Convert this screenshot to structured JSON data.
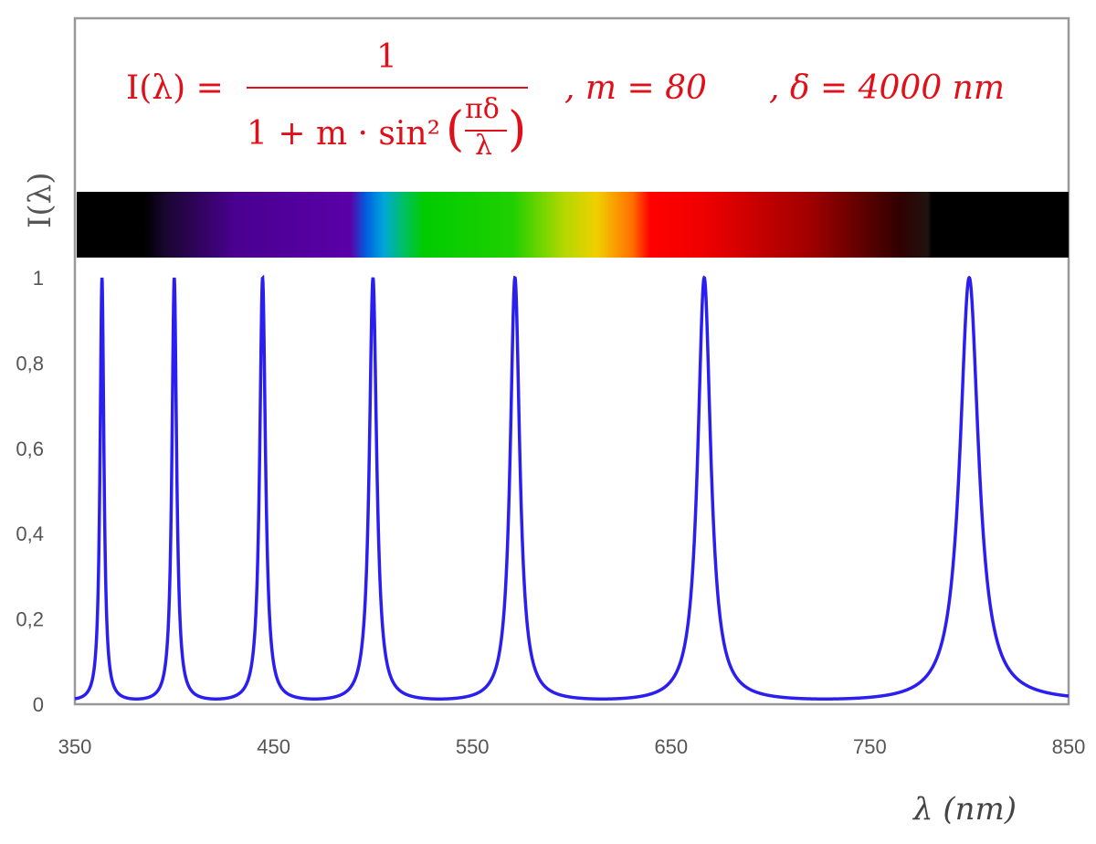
{
  "chart_data": {
    "type": "line",
    "title": {
      "lhs": "I(λ) =",
      "numerator": "1",
      "denominator_left": "1 + m · sin²",
      "frac_top": "πδ",
      "frac_bottom": "λ",
      "param_m": ",   m = 80",
      "param_delta": ",  δ = 4000 nm"
    },
    "function": "1/(1+m*sin^2(pi*delta/lambda))",
    "m": 80,
    "delta_nm": 4000,
    "xlabel": "λ  (nm)",
    "ylabel": "I(λ)",
    "xlim": [
      350,
      850
    ],
    "ylim": [
      0,
      1
    ],
    "xticks": [
      350,
      450,
      550,
      650,
      750,
      850
    ],
    "xtick_labels": [
      "350",
      "450",
      "550",
      "650",
      "750",
      "850"
    ],
    "yticks": [
      0,
      0.2,
      0.4,
      0.6,
      0.8,
      1
    ],
    "ytick_labels": [
      "0",
      "0,2",
      "0,4",
      "0,6",
      "0,8",
      "1"
    ],
    "peaks_nm": [
      363.6,
      400,
      444.4,
      500,
      571.4,
      666.7,
      800
    ],
    "grid": false,
    "line_color": "#2a1ef0",
    "spectrum_band": [
      {
        "nm": 350,
        "color": "#000000"
      },
      {
        "nm": 384,
        "color": "#000000"
      },
      {
        "nm": 395,
        "color": "#1a0630"
      },
      {
        "nm": 430,
        "color": "#4a0090"
      },
      {
        "nm": 488,
        "color": "#5a00a8"
      },
      {
        "nm": 496,
        "color": "#0060e0"
      },
      {
        "nm": 505,
        "color": "#00a8d8"
      },
      {
        "nm": 515,
        "color": "#00c060"
      },
      {
        "nm": 525,
        "color": "#00cc00"
      },
      {
        "nm": 570,
        "color": "#20d000"
      },
      {
        "nm": 595,
        "color": "#b0d800"
      },
      {
        "nm": 612,
        "color": "#f0d000"
      },
      {
        "nm": 630,
        "color": "#ff7000"
      },
      {
        "nm": 639,
        "color": "#ff0000"
      },
      {
        "nm": 665,
        "color": "#f00000"
      },
      {
        "nm": 720,
        "color": "#a00000"
      },
      {
        "nm": 765,
        "color": "#300000"
      },
      {
        "nm": 779,
        "color": "#201410"
      },
      {
        "nm": 781,
        "color": "#000000"
      },
      {
        "nm": 850,
        "color": "#000000"
      }
    ]
  }
}
